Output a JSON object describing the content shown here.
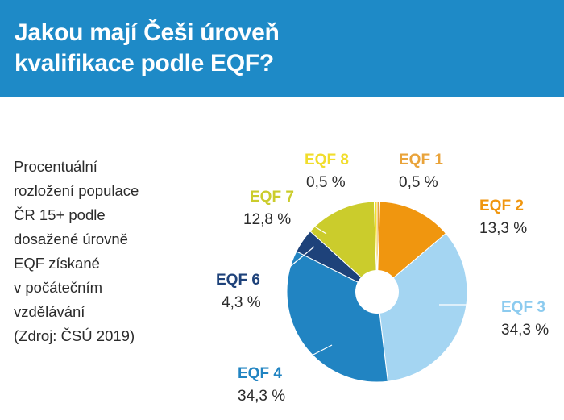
{
  "header": {
    "title_line1": "Jakou mají Češi úroveň",
    "title_line2": "kvalifikace podle EQF?"
  },
  "description": {
    "lines": [
      "Procentuální",
      "rozložení populace",
      "ČR 15+ podle",
      "dosažené úrovně",
      "EQF získané",
      "v počátečním",
      "vzdělávání",
      "(Zdroj: ČSÚ 2019)"
    ]
  },
  "chart_data": {
    "type": "pie",
    "donut": true,
    "start_angle_deg": 0,
    "direction": "clockwise",
    "slices": [
      {
        "label": "EQF 1",
        "value": 0.5,
        "value_label": "0,5 %",
        "color": "#e9a33a"
      },
      {
        "label": "EQF 2",
        "value": 13.3,
        "value_label": "13,3 %",
        "color": "#f0960f"
      },
      {
        "label": "EQF 3",
        "value": 34.3,
        "value_label": "34,3 %",
        "color": "#a4d5f2"
      },
      {
        "label": "EQF 4",
        "value": 34.3,
        "value_label": "34,3 %",
        "color": "#2184c2"
      },
      {
        "label": "EQF 6",
        "value": 4.3,
        "value_label": "4,3 %",
        "color": "#1e427a"
      },
      {
        "label": "EQF 7",
        "value": 12.8,
        "value_label": "12,8 %",
        "color": "#cbcc2c"
      },
      {
        "label": "EQF 8",
        "value": 0.5,
        "value_label": "0,5 %",
        "color": "#f1dd2c"
      }
    ]
  }
}
